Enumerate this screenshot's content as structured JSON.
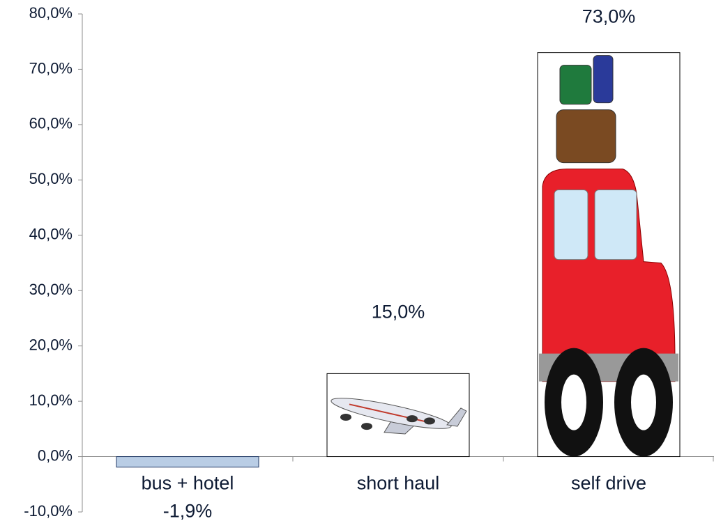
{
  "chart_data": {
    "type": "bar",
    "categories": [
      "bus + hotel",
      "short haul",
      "self drive"
    ],
    "values": [
      -1.9,
      15.0,
      73.0
    ],
    "value_labels": [
      "-1,9%",
      "15,0%",
      "73,0%"
    ],
    "colors": [
      "#b9cde5",
      "#ffffff",
      "#ffffff"
    ],
    "ylim": [
      -10,
      80
    ],
    "yticks": [
      {
        "value": -10,
        "label": "-10,0%"
      },
      {
        "value": 0,
        "label": "0,0%"
      },
      {
        "value": 10,
        "label": "10,0%"
      },
      {
        "value": 20,
        "label": "20,0%"
      },
      {
        "value": 30,
        "label": "30,0%"
      },
      {
        "value": 40,
        "label": "40,0%"
      },
      {
        "value": 50,
        "label": "50,0%"
      },
      {
        "value": 60,
        "label": "60,0%"
      },
      {
        "value": 70,
        "label": "70,0%"
      },
      {
        "value": 80,
        "label": "80,0%"
      }
    ],
    "grid": false
  }
}
